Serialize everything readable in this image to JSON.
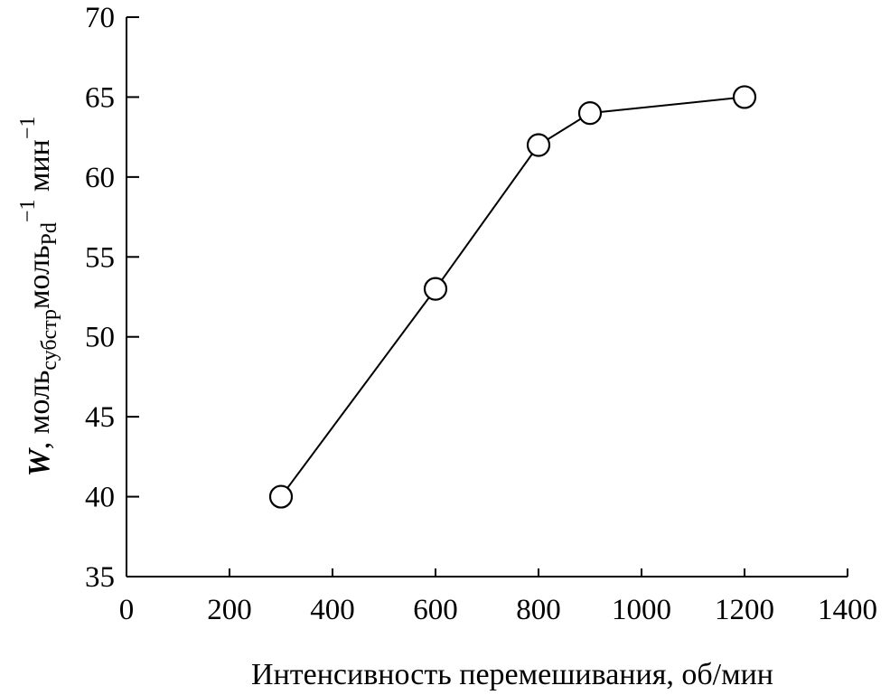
{
  "chart_data": {
    "type": "line",
    "x": [
      300,
      600,
      800,
      900,
      1200
    ],
    "y": [
      40,
      53,
      62,
      64,
      65
    ],
    "xlim": [
      0,
      1400
    ],
    "ylim": [
      35,
      70
    ],
    "xticks": [
      0,
      200,
      400,
      600,
      800,
      1000,
      1200,
      1400
    ],
    "yticks": [
      35,
      40,
      45,
      50,
      55,
      60,
      65,
      70
    ],
    "xlabel": "Интенсивность перемешивания, об/мин",
    "ylabel": {
      "symbol": "W",
      "sep": ", ",
      "unit1": "моль",
      "sub1": "субстр",
      "unit2": "моль",
      "sub2": "Pd",
      "sup2": "−1",
      "unit3": " мин",
      "sup3": "−1"
    },
    "grid": false,
    "marker": "open-circle"
  }
}
